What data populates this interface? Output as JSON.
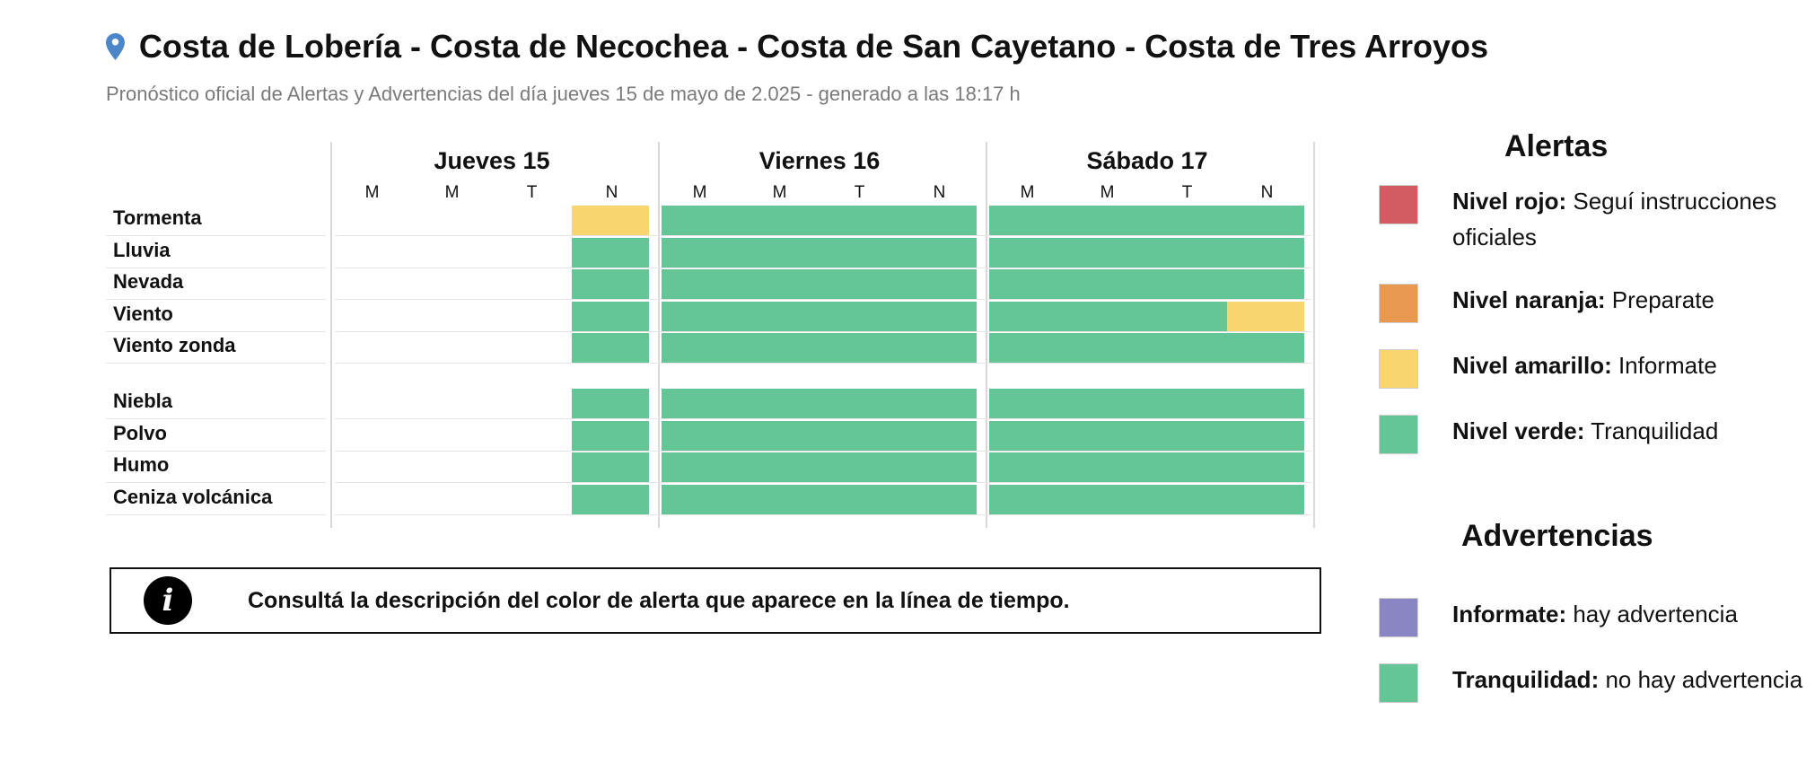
{
  "header": {
    "title": "Costa de Lobería - Costa de Necochea - Costa de San Cayetano - Costa de Tres Arroyos",
    "subtitle": "Pronóstico oficial de Alertas y Advertencias del día jueves 15 de mayo de 2.025 - generado a las 18:17 h",
    "pin_icon": "location-pin-icon"
  },
  "colors": {
    "green": "#64c596",
    "yellow": "#f8d56e",
    "red": "#d25c61",
    "orange": "#e9984f",
    "purple": "#8a86c4",
    "pin": "#4a86c8"
  },
  "timeline": {
    "days": [
      {
        "label": "Jueves 15",
        "periods": [
          "M",
          "M",
          "T",
          "N"
        ]
      },
      {
        "label": "Viernes 16",
        "periods": [
          "M",
          "M",
          "T",
          "N"
        ]
      },
      {
        "label": "Sábado 17",
        "periods": [
          "M",
          "M",
          "T",
          "N"
        ]
      }
    ],
    "alert_rows": [
      {
        "label": "Tormenta",
        "levels": [
          "none",
          "none",
          "none",
          "yellow",
          "green",
          "green",
          "green",
          "green",
          "green",
          "green",
          "green",
          "green"
        ]
      },
      {
        "label": "Lluvia",
        "levels": [
          "none",
          "none",
          "none",
          "green",
          "green",
          "green",
          "green",
          "green",
          "green",
          "green",
          "green",
          "green"
        ]
      },
      {
        "label": "Nevada",
        "levels": [
          "none",
          "none",
          "none",
          "green",
          "green",
          "green",
          "green",
          "green",
          "green",
          "green",
          "green",
          "green"
        ]
      },
      {
        "label": "Viento",
        "levels": [
          "none",
          "none",
          "none",
          "green",
          "green",
          "green",
          "green",
          "green",
          "green",
          "green",
          "green",
          "yellow"
        ]
      },
      {
        "label": "Viento zonda",
        "levels": [
          "none",
          "none",
          "none",
          "green",
          "green",
          "green",
          "green",
          "green",
          "green",
          "green",
          "green",
          "green"
        ]
      }
    ],
    "warning_rows": [
      {
        "label": "Niebla",
        "levels": [
          "none",
          "none",
          "none",
          "green",
          "green",
          "green",
          "green",
          "green",
          "green",
          "green",
          "green",
          "green"
        ]
      },
      {
        "label": "Polvo",
        "levels": [
          "none",
          "none",
          "none",
          "green",
          "green",
          "green",
          "green",
          "green",
          "green",
          "green",
          "green",
          "green"
        ]
      },
      {
        "label": "Humo",
        "levels": [
          "none",
          "none",
          "none",
          "green",
          "green",
          "green",
          "green",
          "green",
          "green",
          "green",
          "green",
          "green"
        ]
      },
      {
        "label": "Ceniza volcánica",
        "levels": [
          "none",
          "none",
          "none",
          "green",
          "green",
          "green",
          "green",
          "green",
          "green",
          "green",
          "green",
          "green"
        ]
      }
    ]
  },
  "notice": {
    "icon": "info-icon",
    "text": "Consultá la descripción del color de alerta que aparece en la línea de tiempo."
  },
  "legend": {
    "alerts_title": "Alertas",
    "alerts": [
      {
        "level": "Nivel rojo:",
        "desc": " Seguí instrucciones oficiales",
        "color": "red"
      },
      {
        "level": "Nivel naranja:",
        "desc": " Preparate",
        "color": "orange"
      },
      {
        "level": "Nivel amarillo:",
        "desc": " Informate",
        "color": "yellow"
      },
      {
        "level": "Nivel verde:",
        "desc": " Tranquilidad",
        "color": "green"
      }
    ],
    "warnings_title": "Advertencias",
    "warnings": [
      {
        "level": "Informate:",
        "desc": " hay advertencia",
        "color": "purple"
      },
      {
        "level": "Tranquilidad:",
        "desc": " no hay advertencia",
        "color": "green"
      }
    ]
  }
}
